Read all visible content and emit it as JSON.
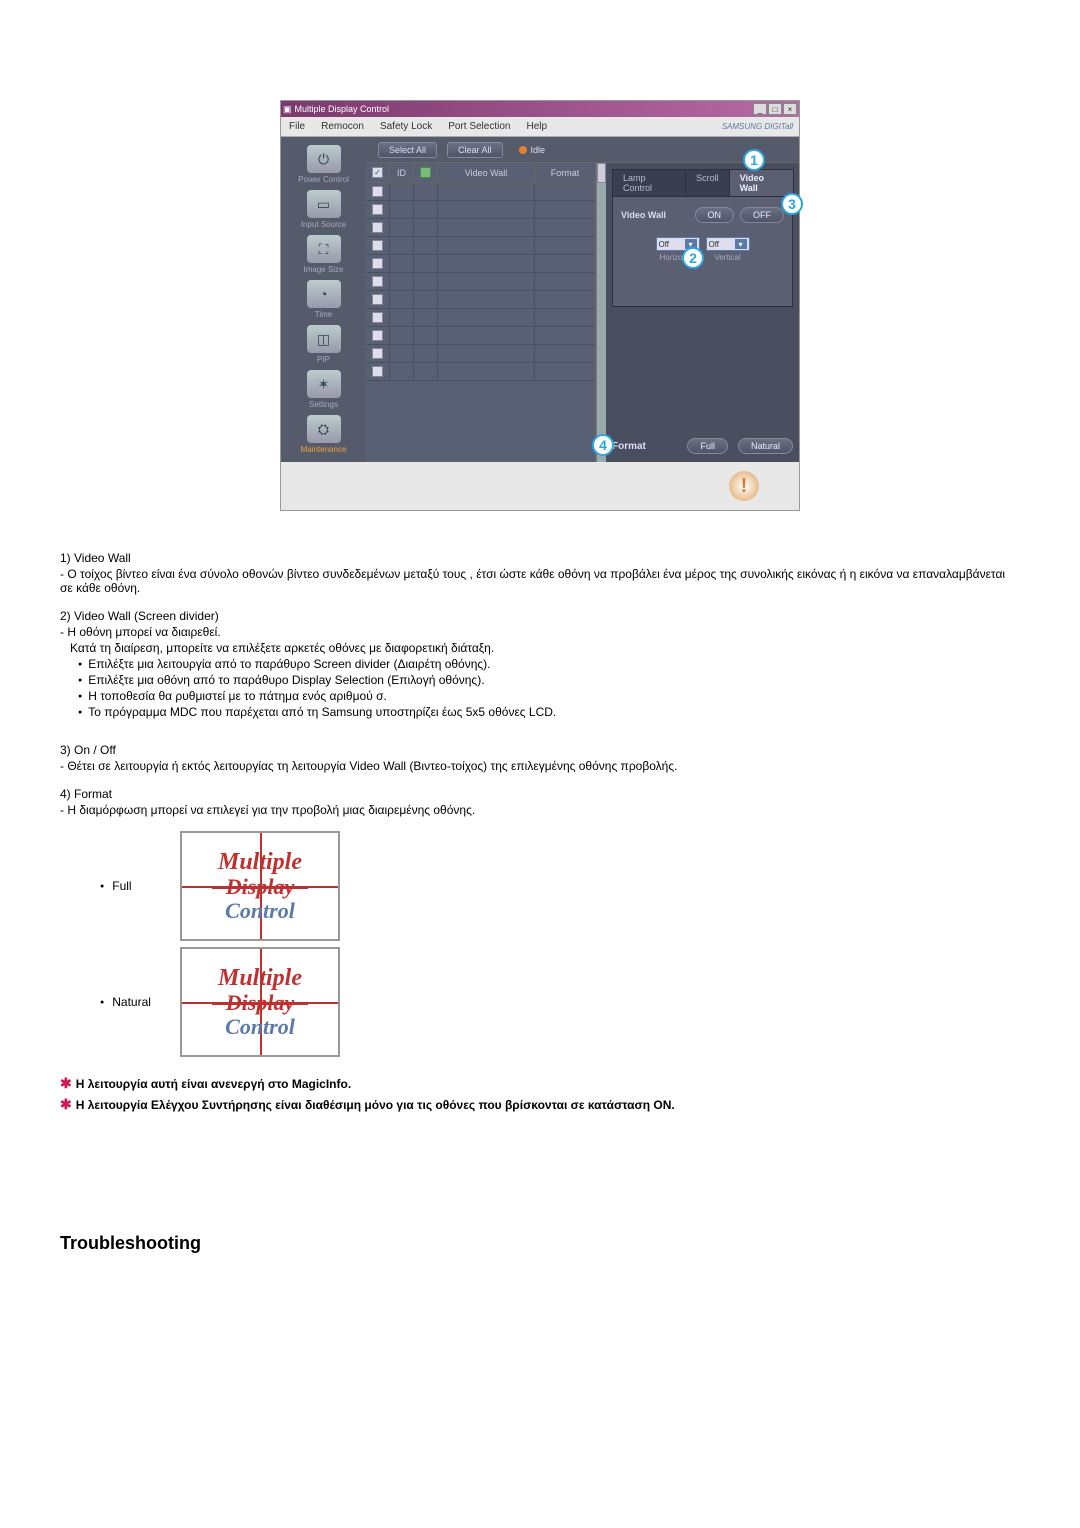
{
  "app": {
    "title": "Multiple Display Control",
    "brand": "SAMSUNG DIGITall",
    "window_buttons": [
      "_",
      "□",
      "×"
    ]
  },
  "menubar": [
    "File",
    "Remocon",
    "Safety Lock",
    "Port Selection",
    "Help"
  ],
  "toolbar": {
    "select_all": "Select All",
    "clear_all": "Clear All",
    "idle": "Idle"
  },
  "sidebar": [
    {
      "key": "power",
      "label": "Power Control",
      "icon": "⏻"
    },
    {
      "key": "input",
      "label": "Input Source",
      "icon": "▭"
    },
    {
      "key": "size",
      "label": "Image Size",
      "icon": "⛶"
    },
    {
      "key": "time",
      "label": "Time",
      "icon": "◔"
    },
    {
      "key": "pip",
      "label": "PIP",
      "icon": "◫"
    },
    {
      "key": "settings",
      "label": "Settings",
      "icon": "✶"
    },
    {
      "key": "maint",
      "label": "Maintenance",
      "icon": "⛭"
    }
  ],
  "grid": {
    "headers": {
      "chk": "",
      "id": "ID",
      "p": "",
      "vw": "Video Wall",
      "fmt": "Format"
    },
    "row_count": 11
  },
  "rightpanel": {
    "tabs": [
      "Lamp Control",
      "Scroll",
      "Video Wall"
    ],
    "active_tab": 2,
    "label_videowall": "Video Wall",
    "on": "ON",
    "off": "OFF",
    "sel_h": "Off",
    "sel_v": "Off",
    "lbl_h": "Horizontal",
    "lbl_v": "Vertical",
    "format": "Format",
    "full": "Full",
    "natural": "Natural"
  },
  "circles": {
    "1": "1",
    "2": "2",
    "3": "3",
    "4": "4"
  },
  "text": {
    "i1_h": "1)  Video Wall",
    "i1_b": "Ο τοίχος βίντεο είναι ένα σύνολο οθονών βίντεο συνδεδεμένων μεταξύ τους , έτσι ώστε κάθε οθόνη να προβάλει ένα μέρος της συνολικής εικόνας ή η εικόνα να επαναλαμβάνεται σε κάθε οθόνη.",
    "i2_h": "2)  Video Wall (Screen divider)",
    "i2_b1": "Η οθόνη μπορεί να διαιρεθεί.",
    "i2_b2": "Κατά τη διαίρεση, μπορείτε να επιλέξετε αρκετές οθόνες με διαφορετική διάταξη.",
    "i2_l": [
      "Επιλέξτε μια λειτουργία από το παράθυρο Screen divider (Διαιρέτη οθόνης).",
      "Επιλέξτε μια οθόνη από το παράθυρο Display Selection (Επιλογή οθόνης).",
      "Η τοποθεσία θα ρυθμιστεί με το πάτημα ενός αριθμού σ.",
      "Το πρόγραμμα MDC που παρέχεται από τη Samsung υποστηρίζει έως 5x5 οθόνες LCD."
    ],
    "i3_h": "3)  On / Off",
    "i3_b": "Θέτει σε λειτουργία ή εκτός λειτουργίας τη λειτουργία Video Wall (Βιντεο-τοίχος) της επιλεγμένης οθόνης προβολής.",
    "i4_h": "4)  Format",
    "i4_b": "Η διαμόρφωση μπορεί να επιλεγεί για την προβολή μιας διαιρεμένης οθόνης.",
    "full": "Full",
    "natural": "Natural",
    "mdc": [
      "Multiple",
      "Display",
      "Control"
    ],
    "note1": "Η λειτουργία αυτή είναι ανενεργή στο MagicInfo.",
    "note2": "Η λειτουργία Ελέγχου Συντήρησης είναι διαθέσιμη μόνο για τις οθόνες που βρίσκονται σε κατάσταση ON.",
    "section": "Troubleshooting"
  },
  "colors": {
    "badge_border": "#2aa6e0",
    "titlebar_a": "#7a3a6e",
    "titlebar_b": "#b86aa5",
    "panel_bg": "#555b6a",
    "red": "#c03030",
    "blue": "#5a7aaa",
    "star": "#cc1a5a"
  }
}
